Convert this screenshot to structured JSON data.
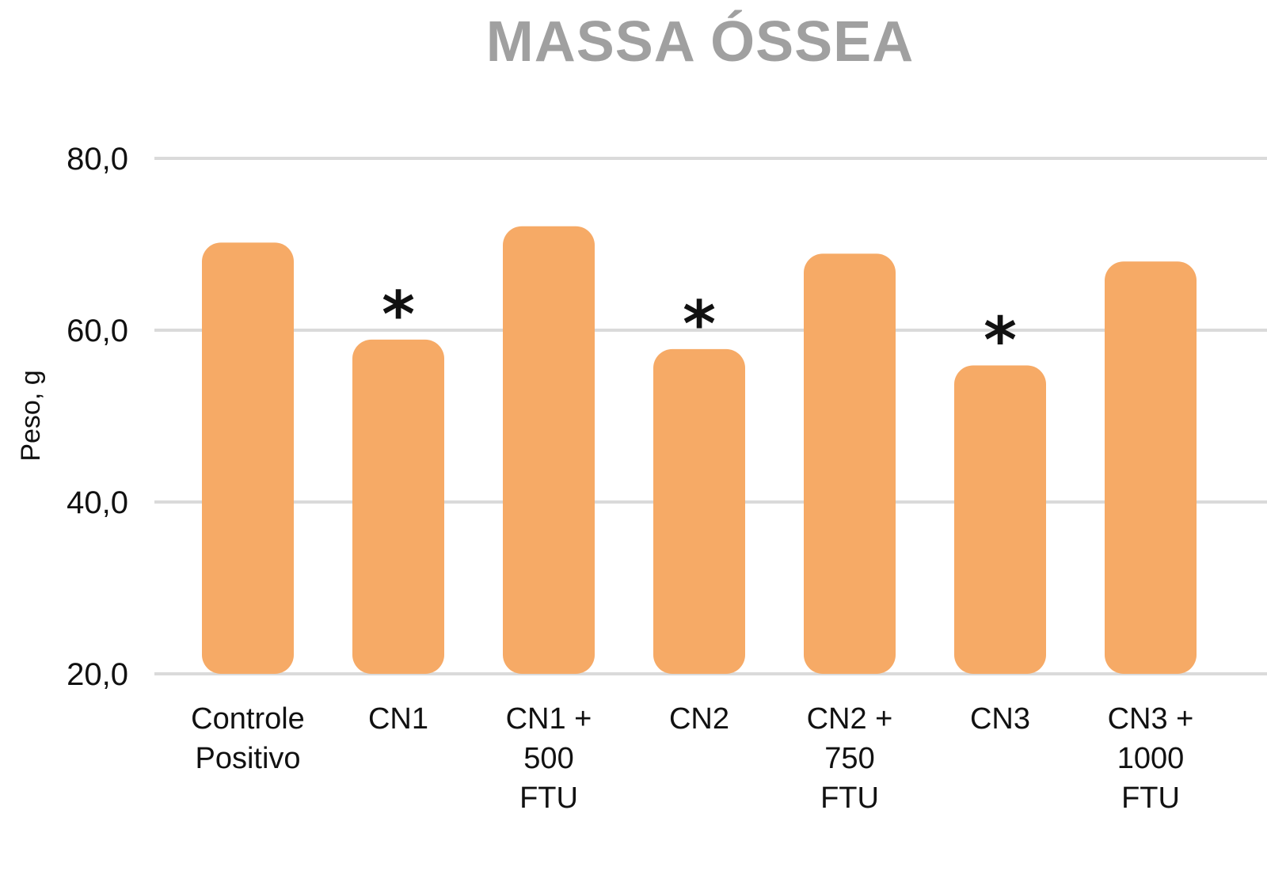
{
  "chart_data": {
    "type": "bar",
    "title": "MASSA ÓSSEA",
    "xlabel": "",
    "ylabel": "Peso, g",
    "ylim": [
      20,
      80
    ],
    "yticks": [
      "20,0",
      "40,0",
      "60,0",
      "80,0"
    ],
    "grid": true,
    "categories": [
      [
        "Controle",
        "Positivo"
      ],
      [
        "CN1"
      ],
      [
        "CN1 +",
        "500",
        "FTU"
      ],
      [
        "CN2"
      ],
      [
        "CN2 +",
        "750",
        "FTU"
      ],
      [
        "CN3"
      ],
      [
        "CN3 +",
        "1000",
        "FTU"
      ]
    ],
    "values": [
      70.2,
      58.9,
      72.1,
      57.8,
      68.9,
      55.9,
      68.0
    ],
    "markers": [
      "",
      "*",
      "",
      "*",
      "",
      "*",
      ""
    ],
    "colors": {
      "bar": "#f6aa66",
      "grid": "#dadada",
      "title": "#a0a0a0"
    }
  }
}
